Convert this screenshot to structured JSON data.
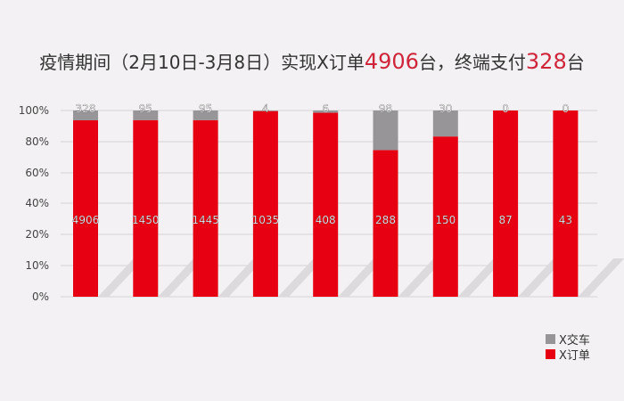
{
  "title": {
    "part1": "疫情期间（2月10日-3月8日）实现X订单",
    "orders": "4906",
    "part2": "台，终端支付",
    "paid": "328",
    "part3": "台"
  },
  "chart_data": {
    "type": "bar",
    "stacked": "percent",
    "categories": [
      "",
      "",
      "",
      "",
      "",
      "",
      "",
      "",
      ""
    ],
    "series": [
      {
        "name": "X订单",
        "color": "#e60012",
        "values": [
          4906,
          1450,
          1445,
          1035,
          408,
          288,
          150,
          87,
          43
        ]
      },
      {
        "name": "X交车",
        "color": "#979598",
        "values": [
          328,
          95,
          95,
          4,
          6,
          98,
          30,
          0,
          0
        ]
      }
    ],
    "yticks": [
      "0%",
      "10%",
      "20%",
      "40%",
      "60%",
      "80%",
      "100%"
    ],
    "ylim": [
      0,
      100
    ],
    "grid": true,
    "legend": "bottom-right"
  },
  "legend": [
    {
      "label": "X交车",
      "color": "#979598"
    },
    {
      "label": "X订单",
      "color": "#e60012"
    }
  ]
}
